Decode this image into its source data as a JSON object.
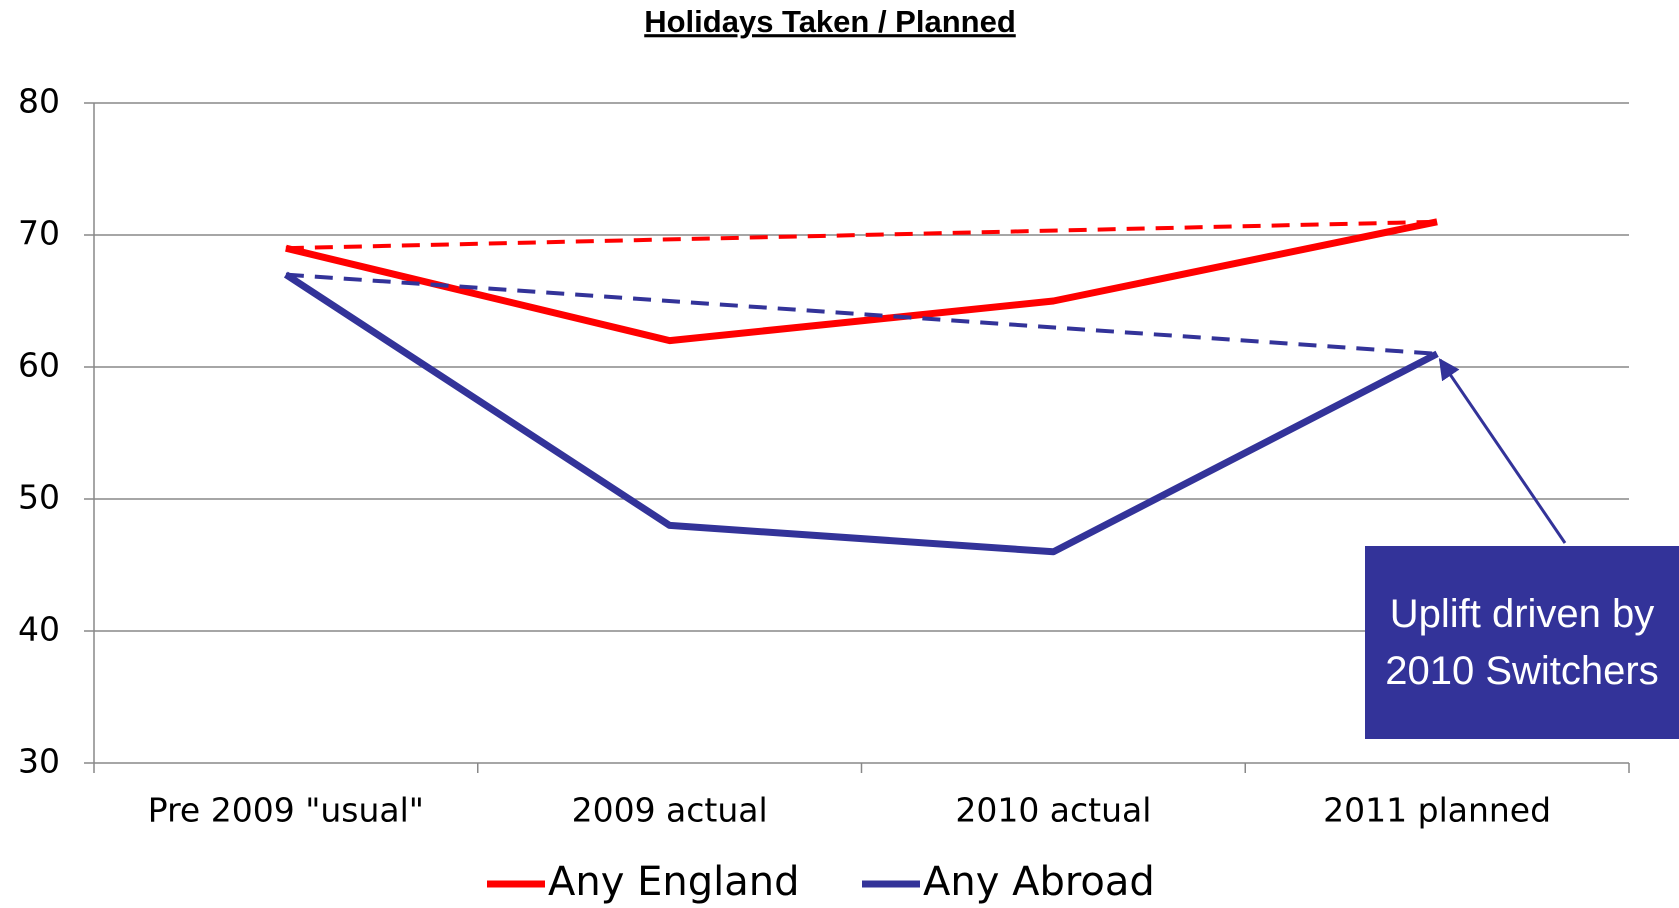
{
  "chart_data": {
    "type": "line",
    "title": "Holidays Taken / Planned",
    "categories": [
      "Pre 2009 \"usual\"",
      "2009 actual",
      "2010 actual",
      "2011 planned"
    ],
    "series": [
      {
        "name": "Any England",
        "color": "#ff0000",
        "values": [
          69,
          62,
          65,
          71
        ]
      },
      {
        "name": "Any Abroad",
        "color": "#333399",
        "values": [
          67,
          48,
          46,
          61
        ]
      }
    ],
    "ylim": [
      30,
      80
    ],
    "yticks": [
      30,
      40,
      50,
      60,
      70,
      80
    ],
    "grid": true,
    "legend": "bottom",
    "annotation": "Uplift driven by 2010 Switchers"
  }
}
